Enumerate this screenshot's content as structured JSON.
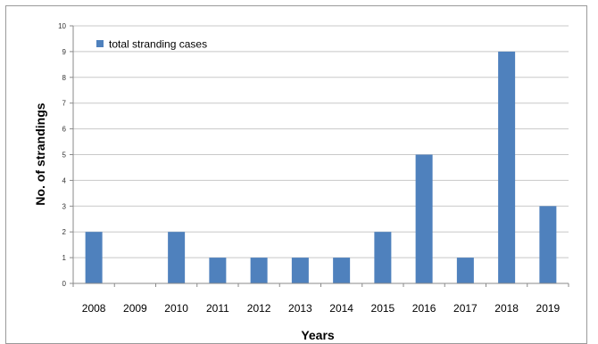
{
  "chart_data": {
    "type": "bar",
    "categories": [
      "2008",
      "2009",
      "2010",
      "2011",
      "2012",
      "2013",
      "2014",
      "2015",
      "2016",
      "2017",
      "2018",
      "2019"
    ],
    "series": [
      {
        "name": "total stranding cases",
        "values": [
          2,
          0,
          2,
          1,
          1,
          1,
          1,
          2,
          5,
          1,
          9,
          3
        ],
        "color": "#4f81bd"
      }
    ],
    "xlabel": "Years",
    "ylabel": "No. of strandings",
    "ylim": [
      0,
      10
    ],
    "yticks": [
      0,
      1,
      2,
      3,
      4,
      5,
      6,
      7,
      8,
      9,
      10
    ],
    "grid": "horizontal",
    "legend_position": "top-left"
  }
}
